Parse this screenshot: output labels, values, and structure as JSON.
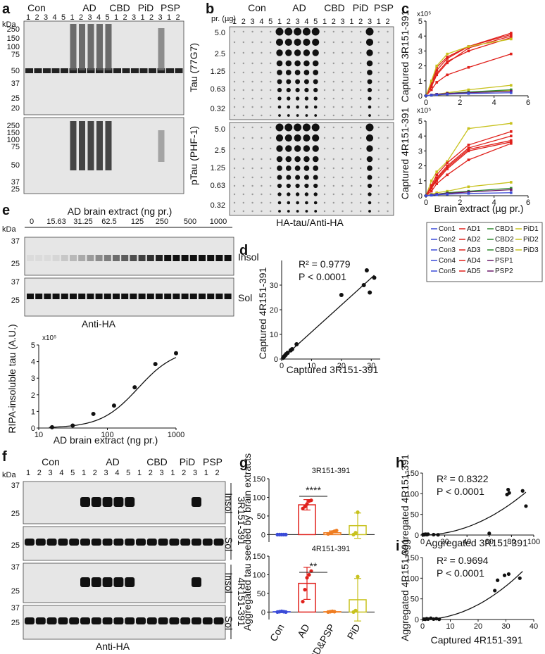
{
  "panel_letters": [
    "a",
    "b",
    "c",
    "d",
    "e",
    "f",
    "g",
    "h",
    "i"
  ],
  "panel_a": {
    "groups": [
      "Con",
      "AD",
      "CBD",
      "PiD",
      "PSP"
    ],
    "lanes": [
      "1",
      "2",
      "3",
      "4",
      "5",
      "1",
      "2",
      "3",
      "4",
      "5",
      "1",
      "2",
      "3",
      "1",
      "2",
      "3",
      "1",
      "2"
    ],
    "kda": "kDa",
    "mw_top": [
      "250",
      "150",
      "100",
      "75",
      "50",
      "37",
      "25",
      "20"
    ],
    "mw_bottom": [
      "250",
      "150",
      "100",
      "75",
      "50",
      "37",
      "25"
    ],
    "antibody_top": "Tau (77G7)",
    "antibody_bottom": "pTau (PHF-1)"
  },
  "panel_b": {
    "groups": [
      "Con",
      "AD",
      "CBD",
      "PiD",
      "PSP"
    ],
    "lanes": [
      "1",
      "2",
      "3",
      "4",
      "5",
      "1",
      "2",
      "3",
      "4",
      "5",
      "1",
      "2",
      "3",
      "1",
      "2",
      "3",
      "1",
      "2"
    ],
    "amount_header": "pr. (µg)",
    "amounts": [
      "5.0",
      "2.5",
      "1.25",
      "0.63",
      "0.32"
    ],
    "caption": "HA-tau/Anti-HA"
  },
  "panel_c": {
    "ylabel_top": "Captured 3R151-391",
    "ylabel_bottom": "Captured 4R151-391",
    "scale_note": "x10⁵",
    "xlabel": "Brain extract (µg pr.)",
    "xticks": [
      "0",
      "2",
      "4",
      "6"
    ],
    "yticks_top": [
      "0",
      "1",
      "2",
      "3",
      "4",
      "5"
    ],
    "yticks_bottom": [
      "0",
      "1",
      "2",
      "3",
      "4",
      "5"
    ],
    "legend": [
      "Con1",
      "AD1",
      "CBD1",
      "PiD1",
      "Con2",
      "AD2",
      "CBD2",
      "PiD2",
      "Con3",
      "AD3",
      "CBD3",
      "PiD3",
      "Con4",
      "AD4",
      "PSP1",
      "Con5",
      "AD5",
      "PSP2"
    ]
  },
  "panel_d": {
    "r2": "R² = 0.9779",
    "p": "P < 0.0001",
    "xlabel": "Captured 3R151-391",
    "ylabel": "Captured 4R151-391",
    "xticks": [
      "0",
      "10",
      "20",
      "30"
    ],
    "yticks": [
      "0",
      "10",
      "20",
      "30"
    ]
  },
  "panel_e": {
    "title": "AD brain extract (ng pr.)",
    "concentrations": [
      "0",
      "15.63",
      "31.25",
      "62.5",
      "125",
      "250",
      "500",
      "1000"
    ],
    "kda": "kDa",
    "mw": [
      "37",
      "25",
      "37",
      "25"
    ],
    "insol": "Insol",
    "sol": "Sol",
    "caption": "Anti-HA",
    "plot_ylabel": "RIPA-insoluble tau (A.U.)",
    "plot_xlabel": "AD brain extract (ng pr.)",
    "scale_note": "x10⁵",
    "yticks": [
      "0",
      "1",
      "2",
      "3",
      "4",
      "5"
    ],
    "xticks": [
      "10",
      "100",
      "1000"
    ]
  },
  "panel_f": {
    "groups": [
      "Con",
      "AD",
      "CBD",
      "PiD",
      "PSP"
    ],
    "lanes": [
      "1",
      "2",
      "3",
      "4",
      "5",
      "1",
      "2",
      "3",
      "4",
      "5",
      "1",
      "2",
      "3",
      "1",
      "2",
      "3",
      "1",
      "2"
    ],
    "kda": "kDa",
    "mw": [
      "37",
      "25",
      "25",
      "37",
      "25",
      "37",
      "25"
    ],
    "insol": "Insol",
    "sol": "Sol",
    "construct_3r": "3R151-391",
    "construct_4r": "4R151-391",
    "caption": "Anti-HA"
  },
  "panel_g": {
    "ylabel": "Aggregated tau seeded by brain extracts",
    "title_top": "3R151-391",
    "title_bottom": "4R151-391",
    "sig_top": "****",
    "sig_bottom": "**",
    "yticks_top": [
      "0",
      "50",
      "100",
      "150"
    ],
    "yticks_bottom": [
      "0",
      "50",
      "100",
      "150"
    ],
    "categories": [
      "Con",
      "AD",
      "CBD&PSP",
      "PiD"
    ]
  },
  "panel_h": {
    "r2": "R² = 0.8322",
    "p": "P < 0.0001",
    "xlabel": "Aggregated 3R151-391",
    "ylabel": "Aggregated 4R151-391",
    "xticks": [
      "0",
      "20",
      "40",
      "60",
      "80",
      "100"
    ],
    "yticks": [
      "0",
      "50",
      "100",
      "150"
    ]
  },
  "panel_i": {
    "r2": "R² = 0.9694",
    "p": "P < 0.0001",
    "xlabel": "Captured 4R151-391",
    "ylabel": "Aggregated 4R151-391",
    "xticks": [
      "0",
      "10",
      "20",
      "30",
      "40"
    ],
    "yticks": [
      "0",
      "50",
      "100",
      "150"
    ]
  },
  "colors": {
    "con": "#3a4bd8",
    "ad": "#e0201b",
    "cbd": "#2e8b2e",
    "pid": "#c8c21e",
    "psp": "#6a1b6a",
    "cbdpsp": "#ef7d22"
  },
  "chart_data": [
    {
      "type": "line",
      "id": "c-top",
      "x": [
        0,
        0.32,
        0.63,
        1.25,
        2.5,
        5.0
      ],
      "xlim": [
        0,
        6
      ],
      "ylim": [
        0,
        5
      ],
      "series": [
        {
          "name": "AD1",
          "group": "ad",
          "values": [
            0,
            0.9,
            1.9,
            2.6,
            3.3,
            4.2
          ]
        },
        {
          "name": "AD2",
          "group": "ad",
          "values": [
            0,
            0.7,
            1.5,
            2.3,
            3.0,
            3.9
          ]
        },
        {
          "name": "AD3",
          "group": "ad",
          "values": [
            0,
            0.8,
            1.7,
            2.5,
            3.3,
            4.1
          ]
        },
        {
          "name": "AD4",
          "group": "ad",
          "values": [
            0,
            0.6,
            1.4,
            2.2,
            3.2,
            4.0
          ]
        },
        {
          "name": "AD5",
          "group": "ad",
          "values": [
            0,
            0.4,
            0.9,
            1.4,
            1.9,
            2.8
          ]
        },
        {
          "name": "PiD3",
          "group": "pid",
          "values": [
            0,
            1.0,
            2.0,
            2.8,
            3.3,
            3.8
          ]
        },
        {
          "name": "PiD2",
          "group": "pid",
          "values": [
            0,
            0.05,
            0.1,
            0.2,
            0.4,
            0.7
          ]
        },
        {
          "name": "PiD1",
          "group": "pid",
          "values": [
            0,
            0.02,
            0.05,
            0.1,
            0.2,
            0.35
          ]
        },
        {
          "name": "CBD1",
          "group": "cbd",
          "values": [
            0,
            0.05,
            0.1,
            0.15,
            0.25,
            0.4
          ]
        },
        {
          "name": "PSP1",
          "group": "psp",
          "values": [
            0,
            0.05,
            0.1,
            0.15,
            0.2,
            0.3
          ]
        },
        {
          "name": "Con1",
          "group": "con",
          "values": [
            0,
            0.03,
            0.06,
            0.1,
            0.15,
            0.2
          ]
        }
      ]
    },
    {
      "type": "line",
      "id": "c-bottom",
      "x": [
        0,
        0.32,
        0.63,
        1.25,
        2.5,
        5.0
      ],
      "xlim": [
        0,
        6
      ],
      "ylim": [
        0,
        5
      ],
      "series": [
        {
          "name": "PiD3",
          "group": "pid",
          "values": [
            0,
            1.0,
            1.6,
            2.3,
            4.5,
            4.85
          ]
        },
        {
          "name": "AD1",
          "group": "ad",
          "values": [
            0,
            0.7,
            1.4,
            2.2,
            3.4,
            4.3
          ]
        },
        {
          "name": "AD2",
          "group": "ad",
          "values": [
            0,
            0.6,
            1.2,
            2.0,
            3.2,
            4.0
          ]
        },
        {
          "name": "AD3",
          "group": "ad",
          "values": [
            0,
            0.5,
            1.1,
            1.9,
            3.1,
            3.7
          ]
        },
        {
          "name": "AD4",
          "group": "ad",
          "values": [
            0,
            0.5,
            1.0,
            1.8,
            3.0,
            3.6
          ]
        },
        {
          "name": "AD5",
          "group": "ad",
          "values": [
            0,
            0.3,
            0.8,
            1.4,
            2.4,
            3.5
          ]
        },
        {
          "name": "PiD2",
          "group": "pid",
          "values": [
            0,
            0.1,
            0.2,
            0.3,
            0.6,
            0.9
          ]
        },
        {
          "name": "CBD1",
          "group": "cbd",
          "values": [
            0,
            0.05,
            0.1,
            0.2,
            0.3,
            0.5
          ]
        },
        {
          "name": "PSP1",
          "group": "psp",
          "values": [
            0,
            0.05,
            0.1,
            0.15,
            0.25,
            0.4
          ]
        },
        {
          "name": "Con1",
          "group": "con",
          "values": [
            0,
            0.03,
            0.06,
            0.1,
            0.15,
            0.2
          ]
        }
      ]
    },
    {
      "type": "scatter",
      "id": "d",
      "xlim": [
        0,
        33
      ],
      "ylim": [
        0,
        40
      ],
      "points": [
        [
          0.5,
          0.5
        ],
        [
          0.8,
          1
        ],
        [
          1.2,
          1.5
        ],
        [
          1.5,
          2
        ],
        [
          2,
          2.5
        ],
        [
          3,
          3.5
        ],
        [
          3.5,
          4
        ],
        [
          5,
          6
        ],
        [
          20,
          26
        ],
        [
          27.5,
          30
        ],
        [
          28.5,
          36
        ],
        [
          29.5,
          27
        ],
        [
          31,
          33
        ]
      ],
      "fit": [
        [
          0,
          0
        ],
        [
          31,
          34
        ]
      ]
    },
    {
      "type": "scatter",
      "id": "e-plot",
      "x_scale": "log",
      "xlim": [
        10,
        1000
      ],
      "ylim": [
        0,
        5
      ],
      "points": [
        [
          15.63,
          0.05
        ],
        [
          31.25,
          0.15
        ],
        [
          62.5,
          0.85
        ],
        [
          125,
          1.35
        ],
        [
          250,
          2.45
        ],
        [
          500,
          3.85
        ],
        [
          1000,
          4.5
        ]
      ]
    },
    {
      "type": "bar",
      "id": "g-top",
      "categories": [
        "Con",
        "AD",
        "CBD&PSP",
        "PiD"
      ],
      "values": [
        0,
        80,
        5,
        24
      ],
      "errors": [
        1,
        14,
        5,
        34
      ],
      "ylim": [
        -20,
        150
      ],
      "points": [
        [
          0,
          0,
          0,
          0,
          0
        ],
        [
          70,
          75,
          82,
          90,
          92
        ],
        [
          2,
          4,
          7,
          9,
          11
        ],
        [
          0,
          5,
          60
        ]
      ]
    },
    {
      "type": "bar",
      "id": "g-bottom",
      "categories": [
        "Con",
        "AD",
        "CBD&PSP",
        "PiD"
      ],
      "values": [
        1,
        77,
        1,
        33
      ],
      "errors": [
        1,
        43,
        1,
        57
      ],
      "ylim": [
        -20,
        150
      ],
      "points": [
        [
          0,
          1,
          2,
          1,
          0
        ],
        [
          28,
          60,
          92,
          100,
          110
        ],
        [
          0,
          1,
          2,
          1
        ],
        [
          0,
          4,
          95
        ]
      ]
    },
    {
      "type": "scatter",
      "id": "h",
      "xlim": [
        0,
        100
      ],
      "ylim": [
        0,
        150
      ],
      "points": [
        [
          0.5,
          1
        ],
        [
          1,
          0.5
        ],
        [
          1.5,
          1.5
        ],
        [
          2,
          1
        ],
        [
          3,
          2
        ],
        [
          4,
          1
        ],
        [
          5,
          2
        ],
        [
          10,
          1
        ],
        [
          14,
          0.5
        ],
        [
          60,
          4
        ],
        [
          76,
          98
        ],
        [
          77,
          110
        ],
        [
          78,
          102
        ],
        [
          90,
          107
        ],
        [
          93,
          70
        ]
      ]
    },
    {
      "type": "scatter",
      "id": "i",
      "xlim": [
        0,
        40
      ],
      "ylim": [
        0,
        150
      ],
      "points": [
        [
          0.5,
          1
        ],
        [
          1,
          0.5
        ],
        [
          1.5,
          2
        ],
        [
          2,
          1
        ],
        [
          3,
          3
        ],
        [
          4,
          1
        ],
        [
          5,
          2
        ],
        [
          6,
          0.5
        ],
        [
          26,
          70
        ],
        [
          27,
          95
        ],
        [
          29.5,
          107
        ],
        [
          31,
          110
        ],
        [
          35,
          100
        ]
      ]
    }
  ]
}
